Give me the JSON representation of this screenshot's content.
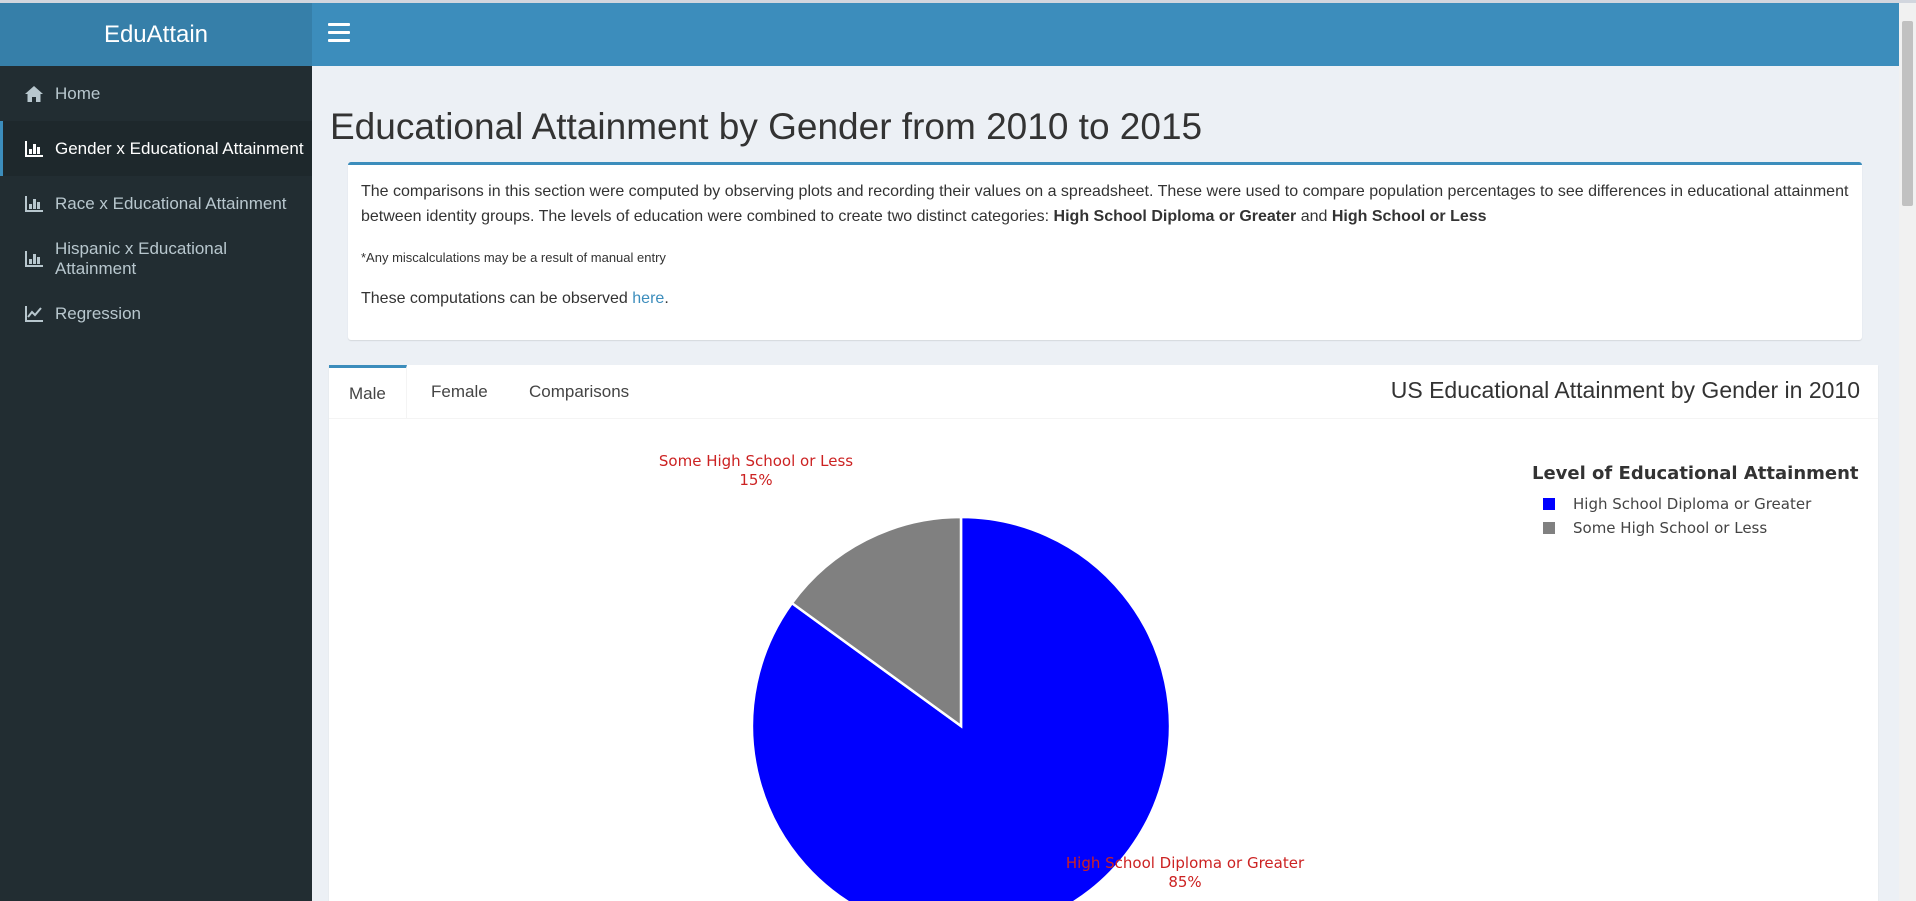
{
  "app": {
    "brand": "EduAttain"
  },
  "sidebar": {
    "items": [
      {
        "label": "Home",
        "icon": "home-icon",
        "active": false
      },
      {
        "label": "Gender x Educational Attainment",
        "icon": "bar-chart-icon",
        "active": true
      },
      {
        "label": "Race x Educational Attainment",
        "icon": "bar-chart-icon",
        "active": false
      },
      {
        "label": "Hispanic x Educational Attainment",
        "icon": "bar-chart-icon",
        "active": false
      },
      {
        "label": "Regression",
        "icon": "line-chart-icon",
        "active": false
      }
    ]
  },
  "page": {
    "title": "Educational Attainment by Gender from 2010 to 2015"
  },
  "info": {
    "text_before": "The comparisons in this section were computed by observing plots and recording their values on a spreadsheet. These were used to compare population percentages to see differences in educational attainment between identity groups. The levels of education were combined to create two distinct categories: ",
    "bold_1": "High School Diploma or Greater",
    "and": " and ",
    "bold_2": "High School or Less",
    "note": "*Any miscalculations may be a result of manual entry",
    "computations_text": "These computations can be observed ",
    "link": "here",
    "period": "."
  },
  "tabs": [
    {
      "label": "Male",
      "active": true
    },
    {
      "label": "Female",
      "active": false
    },
    {
      "label": "Comparisons",
      "active": false
    }
  ],
  "tab_box_title": "US Educational Attainment by Gender in 2010",
  "colors": {
    "accent": "#3c8dbc",
    "sidebar": "#222d32",
    "diploma": "#0000ff",
    "some_hs": "#808080",
    "label": "#cc2222"
  },
  "chart_data": {
    "type": "pie",
    "legend_title": "Level of Educational Attainment",
    "legend_position": "top-right",
    "slices": [
      {
        "label": "High School Diploma or Greater",
        "value": 85,
        "display": "85%",
        "color": "#0000ff"
      },
      {
        "label": "Some High School or Less",
        "value": 15,
        "display": "15%",
        "color": "#808080"
      }
    ]
  }
}
